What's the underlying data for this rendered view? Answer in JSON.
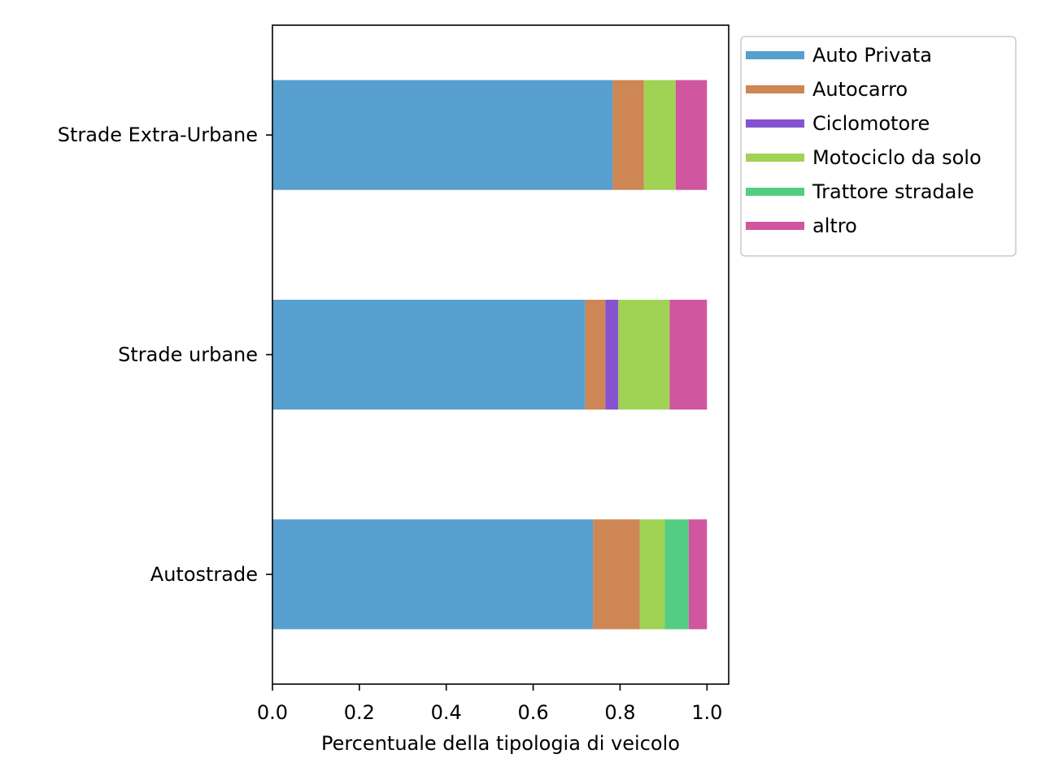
{
  "chart_data": {
    "type": "bar",
    "orientation": "horizontal",
    "stacked": true,
    "title": "",
    "xlabel": "Percentuale della tipologia di veicolo",
    "ylabel": "",
    "xlim": [
      0,
      1.05
    ],
    "xticks": [
      0.0,
      0.2,
      0.4,
      0.6,
      0.8,
      1.0
    ],
    "xtick_labels": [
      "0.0",
      "0.2",
      "0.4",
      "0.6",
      "0.8",
      "1.0"
    ],
    "categories": [
      "Strade Extra-Urbane",
      "Strade urbane",
      "Autostrade"
    ],
    "series": [
      {
        "name": "Auto Privata",
        "color": "#569fcf",
        "values": [
          0.783,
          0.72,
          0.738
        ]
      },
      {
        "name": "Autocarro",
        "color": "#cd8654",
        "values": [
          0.072,
          0.046,
          0.107
        ]
      },
      {
        "name": "Ciclomotore",
        "color": "#8553d0",
        "values": [
          0.0,
          0.03,
          0.0
        ]
      },
      {
        "name": "Motociclo da solo",
        "color": "#a0d253",
        "values": [
          0.073,
          0.118,
          0.058
        ]
      },
      {
        "name": "Trattore stradale",
        "color": "#53cd82",
        "values": [
          0.0,
          0.0,
          0.055
        ]
      },
      {
        "name": "altro",
        "color": "#cf569f",
        "values": [
          0.072,
          0.086,
          0.042
        ]
      }
    ],
    "grid": false,
    "legend": "outside-top-right"
  }
}
